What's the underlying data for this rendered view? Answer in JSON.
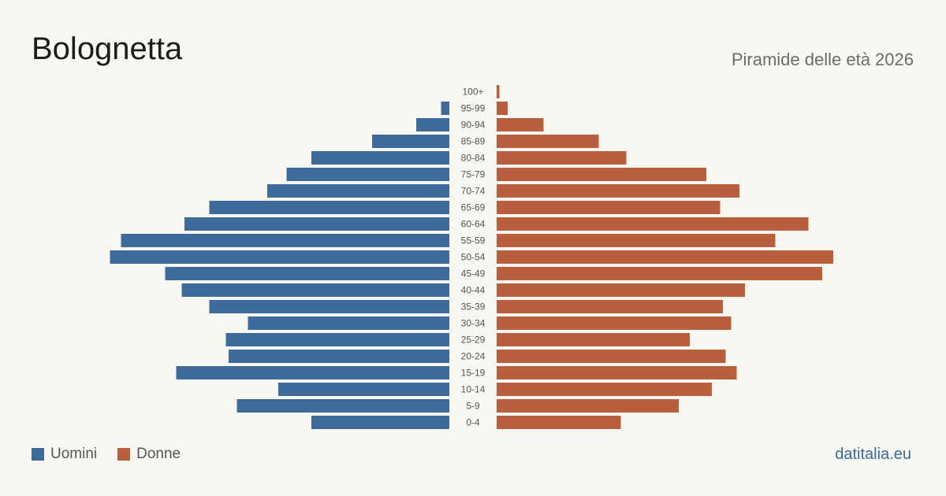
{
  "header": {
    "title": "Bolognetta",
    "subtitle": "Piramide delle età 2026"
  },
  "legend": {
    "men_label": "Uomini",
    "women_label": "Donne"
  },
  "source": "datitalia.eu",
  "colors": {
    "men": "#3d6b9c",
    "women": "#b95f3e",
    "background": "#f9f7f2"
  },
  "chart_data": {
    "type": "bar",
    "orientation": "horizontal-pyramid",
    "title": "Bolognetta",
    "subtitle": "Piramide delle età 2026",
    "categories": [
      "100+",
      "95-99",
      "90-94",
      "85-89",
      "80-84",
      "75-79",
      "70-74",
      "65-69",
      "60-64",
      "55-59",
      "50-54",
      "45-49",
      "40-44",
      "35-39",
      "30-34",
      "25-29",
      "20-24",
      "15-19",
      "10-14",
      "5-9",
      "0-4"
    ],
    "series": [
      {
        "name": "Uomini",
        "values": [
          0,
          3,
          12,
          28,
          50,
          59,
          66,
          87,
          96,
          119,
          123,
          103,
          97,
          87,
          73,
          81,
          80,
          99,
          62,
          77,
          50
        ]
      },
      {
        "name": "Donne",
        "values": [
          1,
          4,
          17,
          37,
          47,
          76,
          88,
          81,
          113,
          101,
          122,
          118,
          90,
          82,
          85,
          70,
          83,
          87,
          78,
          66,
          45
        ]
      }
    ],
    "legend_position": "bottom-left",
    "grid": false
  }
}
